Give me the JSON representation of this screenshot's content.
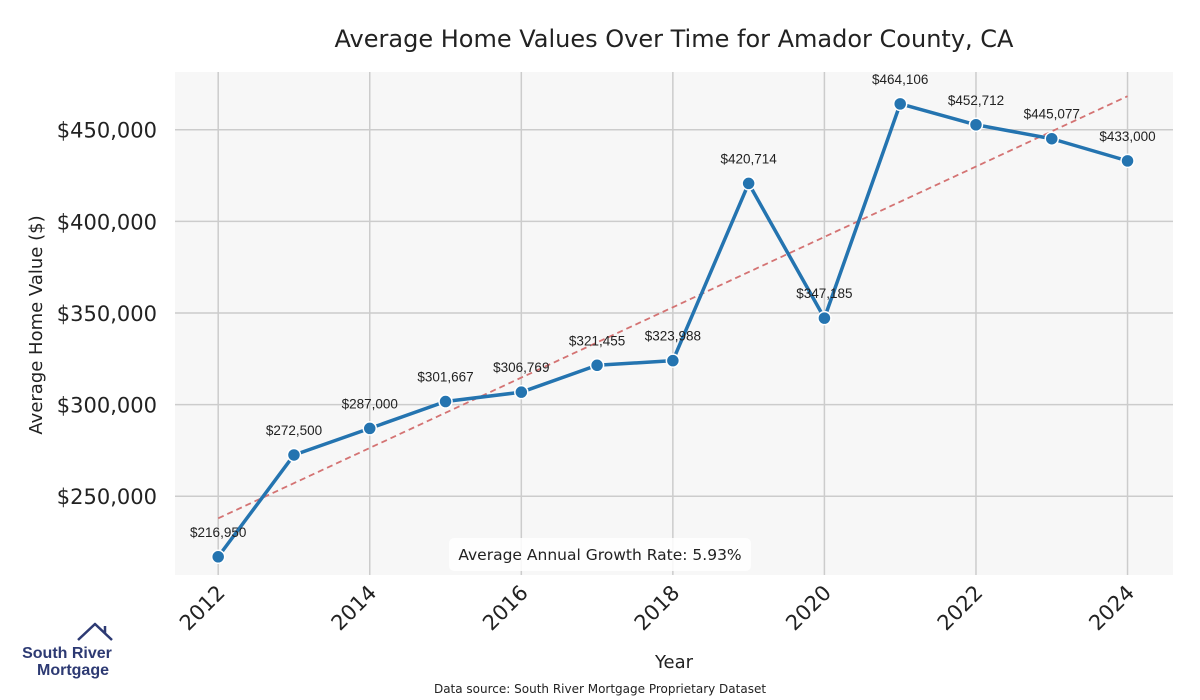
{
  "chart_data": {
    "type": "line",
    "title": "Average Home Values Over Time for Amador County, CA",
    "xlabel": "Year",
    "ylabel": "Average Home Value ($)",
    "x": [
      2012,
      2013,
      2014,
      2015,
      2016,
      2017,
      2018,
      2019,
      2020,
      2021,
      2022,
      2023,
      2024
    ],
    "values": [
      216950,
      272500,
      287000,
      301667,
      306769,
      321455,
      323988,
      420714,
      347185,
      464106,
      452712,
      445077,
      433000
    ],
    "data_labels": [
      "$216,950",
      "$272,500",
      "$287,000",
      "$301,667",
      "$306,769",
      "$321,455",
      "$323,988",
      "$420,714",
      "$347,185",
      "$464,106",
      "$452,712",
      "$445,077",
      "$433,000"
    ],
    "xticks": [
      "2012",
      "2014",
      "2016",
      "2018",
      "2020",
      "2022",
      "2024"
    ],
    "yticks": [
      250000,
      300000,
      350000,
      400000,
      450000
    ],
    "ytick_labels": [
      "$250,000",
      "$300,000",
      "$350,000",
      "$400,000",
      "$450,000"
    ],
    "xlim": [
      2011.43,
      2024.6
    ],
    "ylim": [
      207000,
      481500
    ],
    "trendline": {
      "start": [
        2012,
        237930
      ],
      "end": [
        2024,
        468300
      ]
    },
    "annotation": "Average Annual Growth Rate: 5.93%",
    "grid": true,
    "colors": {
      "line": "#2474b0",
      "trend": "#d47373",
      "plot_bg": "#f7f7f7",
      "grid": "#cccccc"
    }
  },
  "footer": {
    "source": "Data source: South River Mortgage Proprietary Dataset"
  },
  "logo": {
    "line1": "South River",
    "line2": "Mortgage"
  }
}
